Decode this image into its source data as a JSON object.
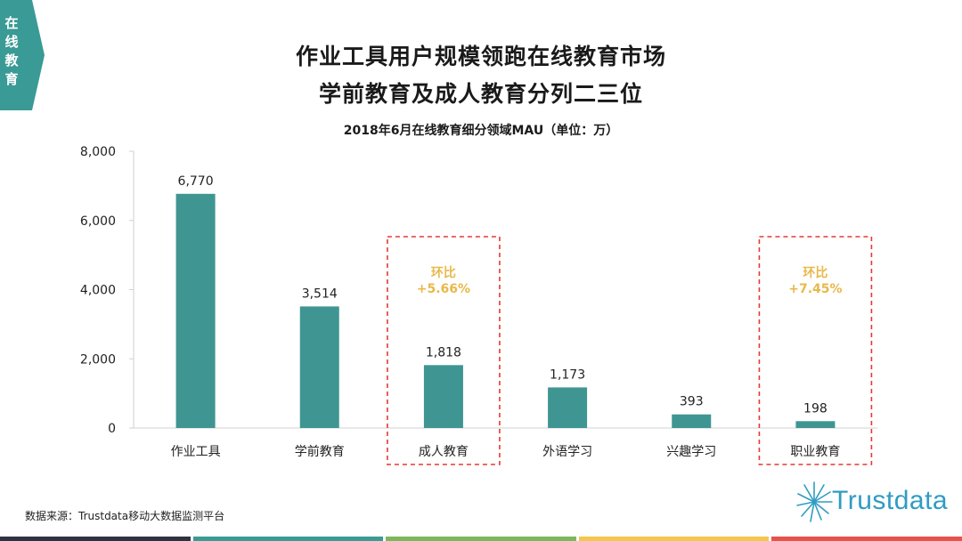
{
  "section_tab": "在线教育",
  "title_line1": "作业工具用户规模领跑在线教育市场",
  "title_line2": "学前教育及成人教育分列二三位",
  "source": "数据来源：Trustdata移动大数据监测平台",
  "brand": "Trustdata",
  "colors": {
    "bar": "#3f9591",
    "accent": "#e8b84a",
    "highlight_border": "#e53935",
    "tab": "#3a9a95",
    "brand": "#2f9cc2",
    "bottom_bar": [
      "#2b3440",
      "#3a9a95",
      "#7cb85b",
      "#f3c64d",
      "#e5534b"
    ]
  },
  "chart_data": {
    "type": "bar",
    "title": "2018年6月在线教育细分领域MAU（单位：万）",
    "categories": [
      "作业工具",
      "学前教育",
      "成人教育",
      "外语学习",
      "兴趣学习",
      "职业教育"
    ],
    "values": [
      6770,
      3514,
      1818,
      1173,
      393,
      198
    ],
    "value_labels": [
      "6,770",
      "3,514",
      "1,818",
      "1,173",
      "393",
      "198"
    ],
    "ylim": [
      0,
      8000
    ],
    "yticks": [
      0,
      2000,
      4000,
      6000,
      8000
    ],
    "ytick_labels": [
      "0",
      "2,000",
      "4,000",
      "6,000",
      "8,000"
    ],
    "grid": false,
    "highlights": [
      {
        "category": "成人教育",
        "label": "环比",
        "value": "+5.66%"
      },
      {
        "category": "职业教育",
        "label": "环比",
        "value": "+7.45%"
      }
    ]
  }
}
